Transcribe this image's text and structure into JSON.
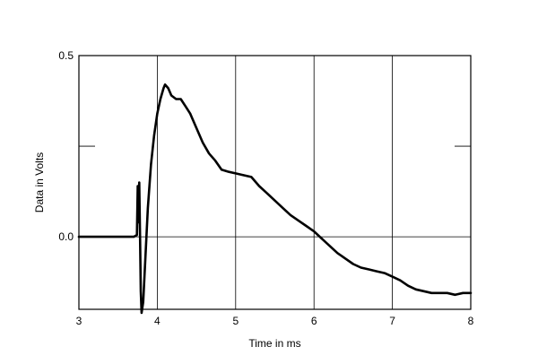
{
  "chart_data": {
    "type": "line",
    "title": "",
    "xlabel": "Time in ms",
    "ylabel": "Data in Volts",
    "xlim": [
      3,
      8
    ],
    "ylim": [
      -0.2,
      0.5
    ],
    "x_ticks": [
      3,
      4,
      5,
      6,
      7,
      8
    ],
    "x_tick_labels": [
      "3",
      "4",
      "5",
      "6",
      "7",
      "8"
    ],
    "y_ticks": [
      -0.2,
      0.0,
      0.25,
      0.5
    ],
    "y_tick_labels": [
      "",
      "0.0",
      "",
      "0.5"
    ],
    "grid": true,
    "legend": "none",
    "colors": {
      "line": "#000000",
      "grid": "#000000",
      "frame": "#000000"
    },
    "series": [
      {
        "x": [
          3.0,
          3.5,
          3.7,
          3.74,
          3.75,
          3.76,
          3.77,
          3.78,
          3.79,
          3.8,
          3.82,
          3.85,
          3.88,
          3.92,
          3.96,
          4.0,
          4.04,
          4.08,
          4.1,
          4.14,
          4.18,
          4.24,
          4.3,
          4.36,
          4.42,
          4.5,
          4.58,
          4.66,
          4.74,
          4.82,
          4.9,
          5.0,
          5.1,
          5.2,
          5.3,
          5.4,
          5.5,
          5.6,
          5.7,
          5.8,
          5.9,
          6.0,
          6.1,
          6.2,
          6.3,
          6.4,
          6.5,
          6.6,
          6.7,
          6.8,
          6.9,
          7.0,
          7.1,
          7.2,
          7.3,
          7.4,
          7.5,
          7.6,
          7.7,
          7.8,
          7.9,
          8.0
        ],
        "values": [
          0.0,
          0.0,
          0.0,
          0.005,
          0.14,
          0.04,
          0.15,
          0.0,
          -0.15,
          -0.21,
          -0.18,
          -0.05,
          0.08,
          0.2,
          0.28,
          0.34,
          0.38,
          0.41,
          0.42,
          0.41,
          0.39,
          0.38,
          0.38,
          0.36,
          0.34,
          0.3,
          0.26,
          0.23,
          0.21,
          0.185,
          0.18,
          0.175,
          0.17,
          0.165,
          0.14,
          0.12,
          0.1,
          0.08,
          0.06,
          0.045,
          0.03,
          0.015,
          -0.005,
          -0.025,
          -0.045,
          -0.06,
          -0.075,
          -0.085,
          -0.09,
          -0.095,
          -0.1,
          -0.11,
          -0.12,
          -0.135,
          -0.145,
          -0.15,
          -0.155,
          -0.155,
          -0.155,
          -0.16,
          -0.155,
          -0.155
        ]
      }
    ]
  }
}
